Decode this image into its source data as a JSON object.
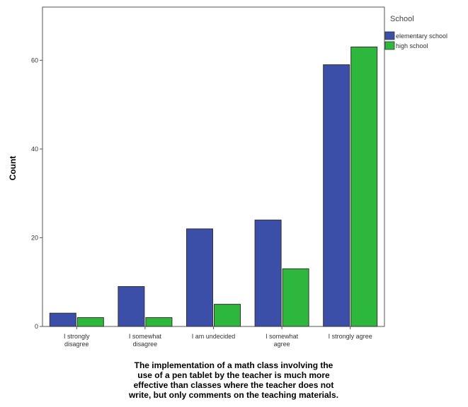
{
  "chart_data": {
    "type": "bar",
    "categories": [
      [
        "I strongly",
        "disagree"
      ],
      [
        "I somewhat",
        "disagree"
      ],
      [
        "I am undecided"
      ],
      [
        "I somewhat",
        "agree"
      ],
      [
        "I strongly agree"
      ]
    ],
    "series": [
      {
        "name": "elementary school",
        "values": [
          3,
          9,
          22,
          24,
          59
        ],
        "color": "#3b4ea8"
      },
      {
        "name": "high school",
        "values": [
          2,
          2,
          5,
          13,
          63
        ],
        "color": "#2db83d"
      }
    ],
    "ylabel": "Count",
    "xlabel": [
      "The implementation of a math class involving the",
      "use of a pen tablet by the teacher is much more",
      "effective than classes where the teacher does not",
      "write, but only comments on the teaching materials."
    ],
    "ylim": [
      0,
      72
    ],
    "yticks": [
      0,
      20,
      40,
      60
    ],
    "legend": {
      "title": "School",
      "position": "top-right"
    },
    "grid": false
  }
}
